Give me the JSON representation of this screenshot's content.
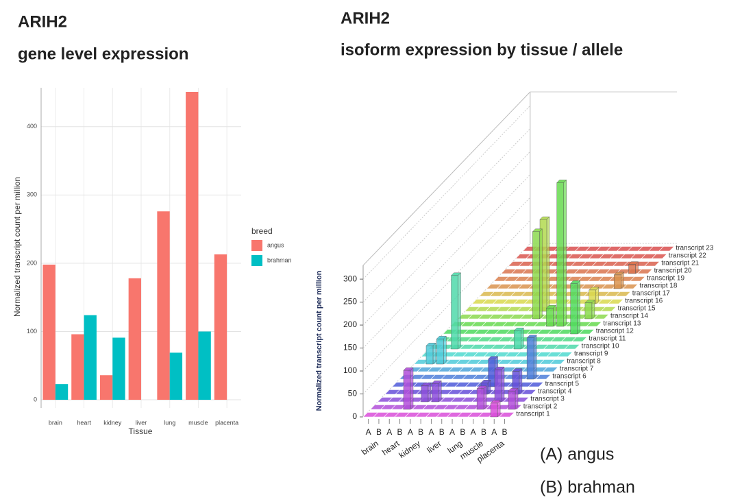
{
  "chart_data": [
    {
      "type": "bar",
      "title": "ARIH2",
      "subtitle": "gene level expression",
      "x_label": "Tissue",
      "y_label": "Normalized transcript count per million",
      "categories": [
        "brain",
        "heart",
        "kidney",
        "liver",
        "lung",
        "muscle",
        "placenta"
      ],
      "legend_title": "breed",
      "series": [
        {
          "name": "angus",
          "color": "#f8766d",
          "values": [
            198,
            96,
            36,
            178,
            276,
            451,
            213
          ]
        },
        {
          "name": "brahman",
          "color": "#00bfc4",
          "values": [
            23,
            124,
            91,
            null,
            69,
            100,
            null
          ]
        }
      ],
      "ylim": [
        -12,
        457
      ],
      "yticks": [
        0,
        100,
        200,
        300,
        400
      ],
      "grid": true
    },
    {
      "type": "bar3d",
      "title": "ARIH2",
      "subtitle": "isoform expression by tissue / allele",
      "z_label": "Normalized transcript count per million",
      "columns": [
        "A",
        "B",
        "A",
        "B",
        "A",
        "B",
        "A",
        "B",
        "A",
        "B",
        "A",
        "B",
        "A",
        "B"
      ],
      "tissues": [
        "brain",
        "heart",
        "kidney",
        "liver",
        "lung",
        "muscle",
        "placenta"
      ],
      "notes": [
        "(A) angus",
        "(B) brahman"
      ],
      "zlim": [
        0,
        330
      ],
      "zticks": [
        0,
        50,
        100,
        150,
        200,
        250,
        300
      ],
      "series": [
        {
          "name": "transcript 1",
          "color": "#d94fd9",
          "values": [
            0,
            0,
            0,
            0,
            0,
            0,
            0,
            0,
            0,
            0,
            0,
            0,
            30,
            0
          ]
        },
        {
          "name": "transcript 2",
          "color": "#b24fd9",
          "values": [
            0,
            0,
            0,
            85,
            0,
            0,
            0,
            0,
            0,
            0,
            45,
            0,
            0,
            40
          ]
        },
        {
          "name": "transcript 3",
          "color": "#8c4fd9",
          "values": [
            0,
            0,
            0,
            0,
            35,
            40,
            0,
            0,
            0,
            0,
            0,
            70,
            0,
            0
          ]
        },
        {
          "name": "transcript 4",
          "color": "#664fd9",
          "values": [
            0,
            0,
            0,
            0,
            0,
            0,
            0,
            0,
            0,
            25,
            0,
            0,
            50,
            0
          ]
        },
        {
          "name": "transcript 5",
          "color": "#4f5ad9",
          "values": [
            0,
            0,
            0,
            0,
            0,
            0,
            0,
            0,
            0,
            60,
            0,
            0,
            0,
            0
          ]
        },
        {
          "name": "transcript 6",
          "color": "#4f7fd9",
          "values": [
            0,
            0,
            0,
            0,
            0,
            0,
            0,
            0,
            0,
            0,
            0,
            0,
            90,
            0
          ]
        },
        {
          "name": "transcript 7",
          "color": "#4fa5d9",
          "values": [
            0,
            0,
            0,
            0,
            0,
            0,
            0,
            0,
            0,
            0,
            0,
            0,
            0,
            0
          ]
        },
        {
          "name": "transcript 8",
          "color": "#4fcad9",
          "values": [
            0,
            40,
            55,
            0,
            0,
            0,
            0,
            0,
            0,
            0,
            0,
            0,
            0,
            0
          ]
        },
        {
          "name": "transcript 9",
          "color": "#4fd9cf",
          "values": [
            0,
            0,
            0,
            0,
            0,
            0,
            0,
            0,
            0,
            0,
            0,
            0,
            0,
            0
          ]
        },
        {
          "name": "transcript 10",
          "color": "#4fd9aa",
          "values": [
            0,
            0,
            160,
            0,
            0,
            0,
            0,
            0,
            40,
            0,
            0,
            0,
            0,
            0
          ]
        },
        {
          "name": "transcript 11",
          "color": "#4fd985",
          "values": [
            0,
            0,
            0,
            0,
            0,
            0,
            0,
            0,
            0,
            0,
            0,
            0,
            0,
            0
          ]
        },
        {
          "name": "transcript 12",
          "color": "#4fd95f",
          "values": [
            0,
            0,
            0,
            0,
            0,
            0,
            0,
            0,
            0,
            0,
            0,
            0,
            110,
            0
          ]
        },
        {
          "name": "transcript 13",
          "color": "#66d94f",
          "values": [
            0,
            0,
            0,
            0,
            0,
            0,
            0,
            0,
            0,
            40,
            313,
            0,
            0,
            0
          ]
        },
        {
          "name": "transcript 14",
          "color": "#8cd94f",
          "values": [
            0,
            0,
            0,
            0,
            0,
            0,
            0,
            190,
            0,
            0,
            0,
            0,
            35,
            0
          ]
        },
        {
          "name": "transcript 15",
          "color": "#b2d94f",
          "values": [
            0,
            0,
            0,
            0,
            0,
            0,
            0,
            200,
            0,
            0,
            0,
            0,
            0,
            0
          ]
        },
        {
          "name": "transcript 16",
          "color": "#d9d94f",
          "values": [
            0,
            0,
            0,
            0,
            0,
            0,
            0,
            0,
            0,
            0,
            0,
            30,
            0,
            0
          ]
        },
        {
          "name": "transcript 17",
          "color": "#d9b84f",
          "values": [
            0,
            0,
            0,
            0,
            0,
            0,
            0,
            0,
            0,
            0,
            0,
            0,
            0,
            0
          ]
        },
        {
          "name": "transcript 18",
          "color": "#d9934f",
          "values": [
            0,
            0,
            0,
            0,
            0,
            0,
            0,
            0,
            0,
            0,
            0,
            0,
            30,
            0
          ]
        },
        {
          "name": "transcript 19",
          "color": "#d9804f",
          "values": [
            0,
            0,
            0,
            0,
            0,
            0,
            0,
            0,
            0,
            0,
            0,
            0,
            0,
            0
          ]
        },
        {
          "name": "transcript 20",
          "color": "#d9744f",
          "values": [
            0,
            0,
            0,
            0,
            0,
            0,
            0,
            0,
            0,
            0,
            0,
            0,
            20,
            0
          ]
        },
        {
          "name": "transcript 21",
          "color": "#d9624f",
          "values": [
            0,
            0,
            0,
            0,
            0,
            0,
            0,
            0,
            0,
            0,
            0,
            0,
            0,
            0
          ]
        },
        {
          "name": "transcript 22",
          "color": "#d9554f",
          "values": [
            0,
            0,
            0,
            0,
            0,
            0,
            0,
            0,
            0,
            0,
            0,
            0,
            0,
            0
          ]
        },
        {
          "name": "transcript 23",
          "color": "#d94f4f",
          "values": [
            0,
            0,
            0,
            0,
            0,
            0,
            0,
            0,
            0,
            0,
            0,
            0,
            0,
            0
          ]
        }
      ]
    }
  ]
}
